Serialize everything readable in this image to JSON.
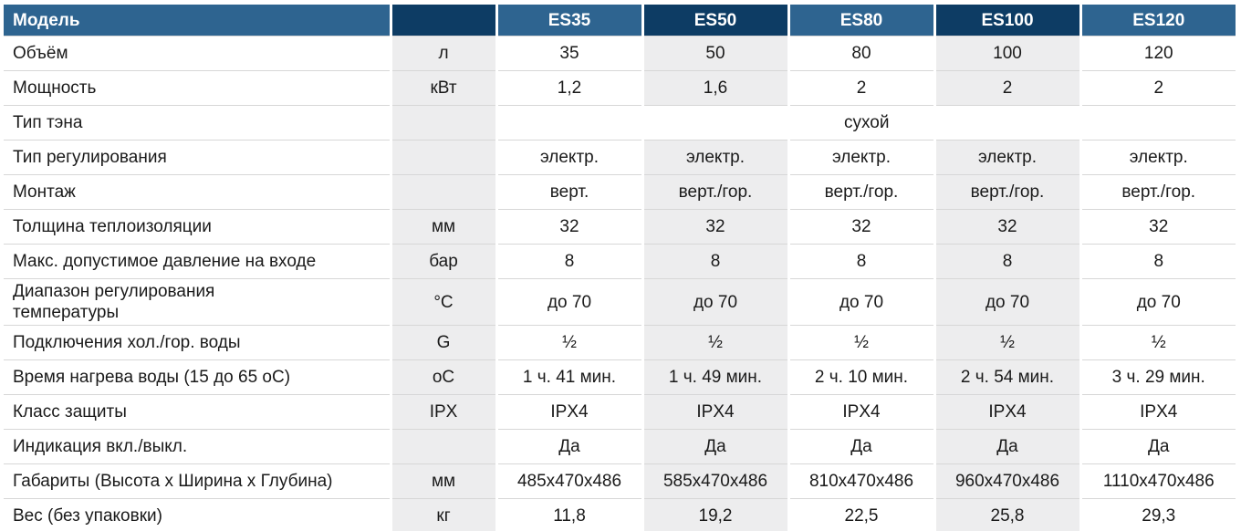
{
  "table": {
    "header": {
      "label": "Модель",
      "unit": "",
      "models": [
        "ES35",
        "ES50",
        "ES80",
        "ES100",
        "ES120"
      ]
    },
    "rows": [
      {
        "label": "Объём",
        "unit": "л",
        "values": [
          "35",
          "50",
          "80",
          "100",
          "120"
        ]
      },
      {
        "label": "Мощность",
        "unit": "кВт",
        "values": [
          "1,2",
          "1,6",
          "2",
          "2",
          "2"
        ]
      },
      {
        "label": "Тип тэна",
        "unit": "",
        "span": "сухой"
      },
      {
        "label": "Тип регулирования",
        "unit": "",
        "values": [
          "электр.",
          "электр.",
          "электр.",
          "электр.",
          "электр."
        ]
      },
      {
        "label": "Монтаж",
        "unit": "",
        "values": [
          "верт.",
          "верт./гор.",
          "верт./гор.",
          "верт./гор.",
          "верт./гор."
        ]
      },
      {
        "label": "Толщина теплоизоляции",
        "unit": "мм",
        "values": [
          "32",
          "32",
          "32",
          "32",
          "32"
        ]
      },
      {
        "label": "Макс. допустимое давление на входе",
        "unit": "бар",
        "values": [
          "8",
          "8",
          "8",
          "8",
          "8"
        ]
      },
      {
        "label": "Диапазон регулирования\nтемпературы",
        "unit": "°С",
        "tall": true,
        "values": [
          "до 70",
          "до 70",
          "до 70",
          "до 70",
          "до 70"
        ]
      },
      {
        "label": "Подключения хол./гор. воды",
        "unit": "G",
        "values": [
          "½",
          "½",
          "½",
          "½",
          "½"
        ]
      },
      {
        "label": "Время нагрева воды (15 до 65 оС)",
        "unit": "оС",
        "values": [
          "1 ч. 41 мин.",
          "1 ч. 49 мин.",
          "2 ч. 10 мин.",
          "2 ч. 54 мин.",
          "3 ч. 29 мин."
        ]
      },
      {
        "label": "Класс защиты",
        "unit": "IPX",
        "values": [
          "IPX4",
          "IPX4",
          "IPX4",
          "IPX4",
          "IPX4"
        ]
      },
      {
        "label": "Индикация вкл./выкл.",
        "unit": "",
        "values": [
          "Да",
          "Да",
          "Да",
          "Да",
          "Да"
        ]
      },
      {
        "label": "Габариты (Высота x Ширина x Глубина)",
        "unit": "мм",
        "values": [
          "485x470x486",
          "585x470x486",
          "810x470x486",
          "960x470x486",
          "1110x470x486"
        ]
      },
      {
        "label": "Вес (без упаковки)",
        "unit": "кг",
        "values": [
          "11,8",
          "19,2",
          "22,5",
          "25,8",
          "29,3"
        ]
      }
    ],
    "colors": {
      "header_medium_blue": "#2e6490",
      "header_dark_navy": "#0d3c64",
      "column_band_gray": "#ededee",
      "row_separator": "#d7d7d7",
      "header_text": "#ffffff",
      "body_text": "#1a1a1a"
    }
  }
}
